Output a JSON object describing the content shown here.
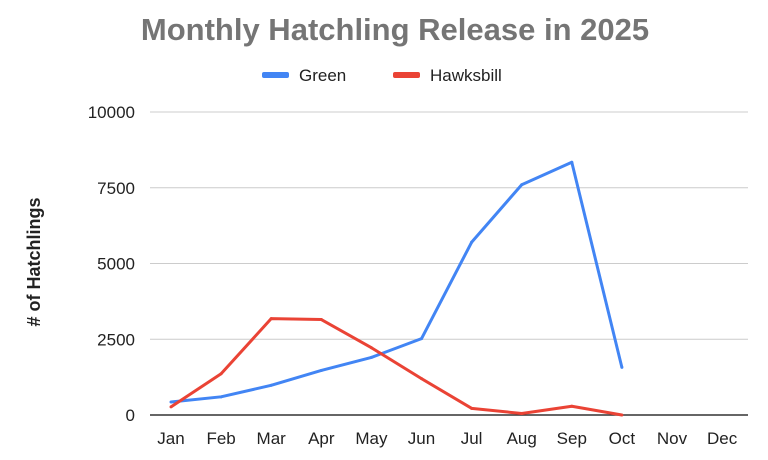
{
  "chart_data": {
    "type": "line",
    "title": "Monthly Hatchling Release in 2025",
    "xlabel": "",
    "ylabel": "# of Hatchlings",
    "categories": [
      "Jan",
      "Feb",
      "Mar",
      "Apr",
      "May",
      "Jun",
      "Jul",
      "Aug",
      "Sep",
      "Oct",
      "Nov",
      "Dec"
    ],
    "ylim": [
      0,
      10000
    ],
    "yticks": [
      0,
      2500,
      5000,
      7500,
      10000
    ],
    "grid": true,
    "legend": "top",
    "series": [
      {
        "name": "Green",
        "color": "#4285f4",
        "values": [
          430,
          600,
          980,
          1470,
          1900,
          2520,
          5700,
          7600,
          8340,
          1570,
          null,
          null
        ]
      },
      {
        "name": "Hawksbill",
        "color": "#ea4335",
        "values": [
          270,
          1360,
          3180,
          3150,
          2220,
          1200,
          220,
          50,
          290,
          0,
          null,
          null
        ]
      }
    ]
  }
}
